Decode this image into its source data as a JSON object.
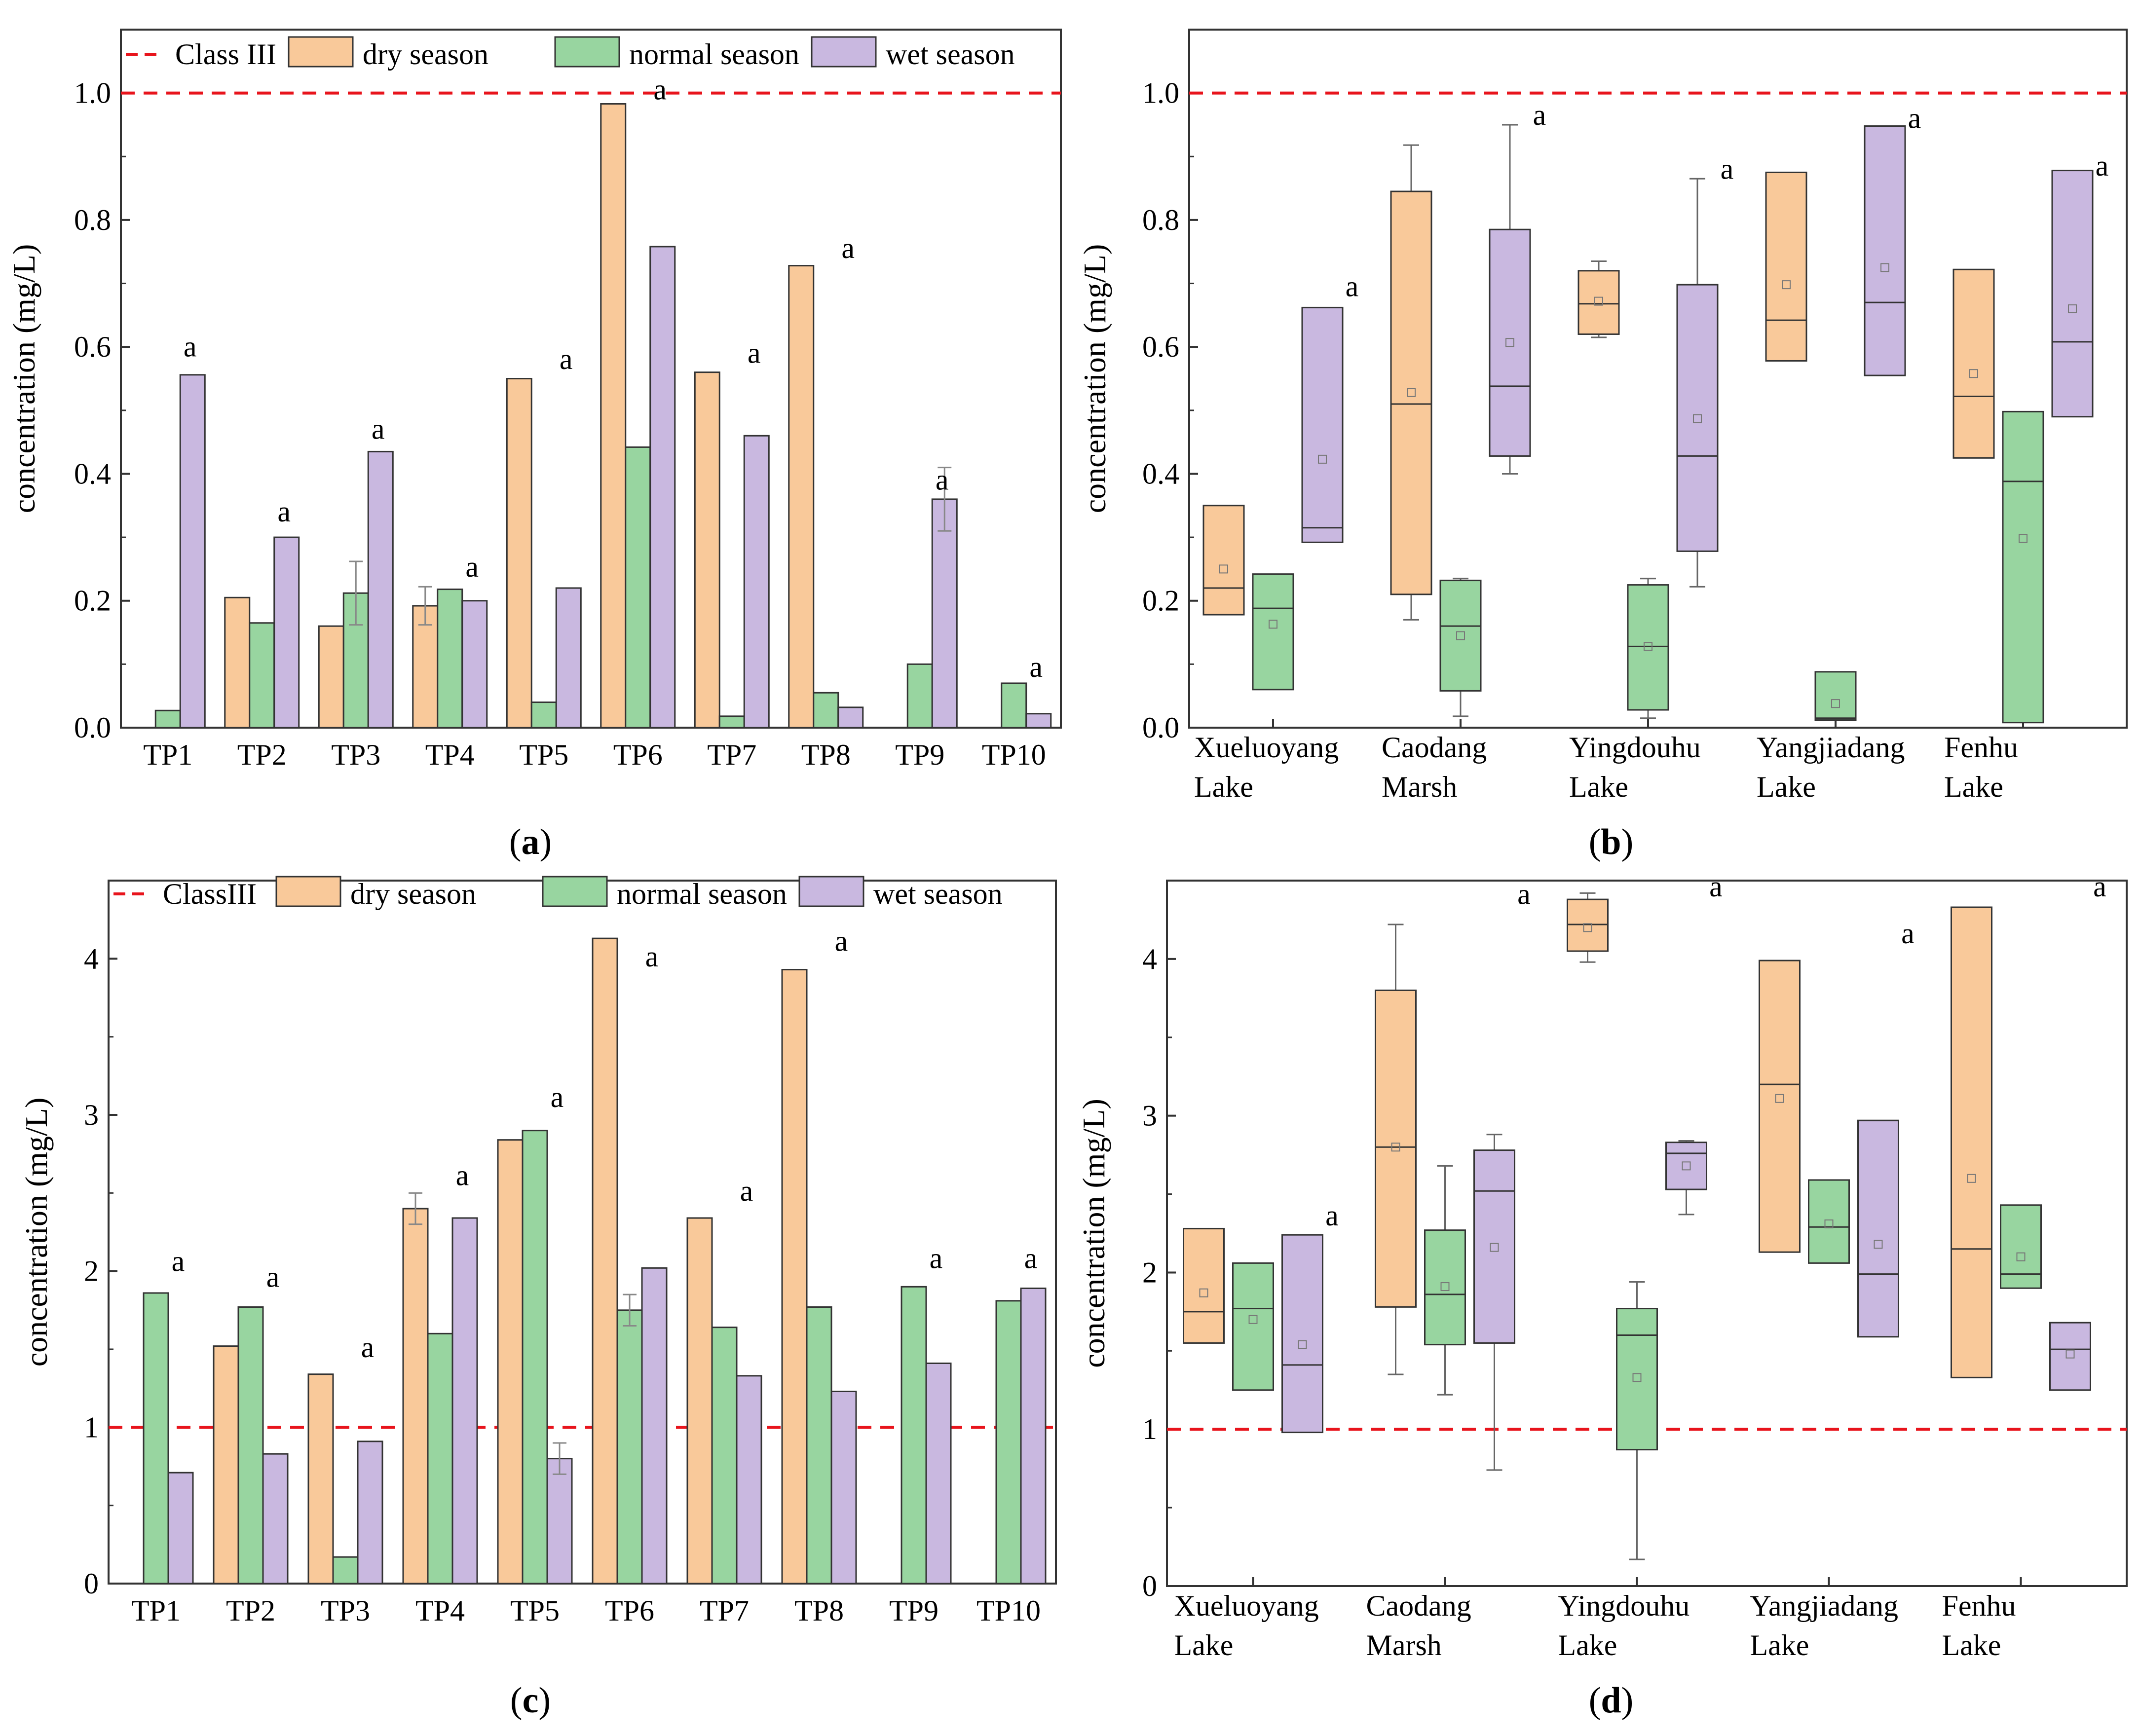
{
  "colors": {
    "dry": "#f9c99a",
    "normal": "#98d5a0",
    "wet": "#c9b8e0",
    "reference": "#e8141c",
    "stroke": "#333333"
  },
  "panels": [
    {
      "id": "a",
      "label": "a",
      "chart_data": {
        "type": "bar",
        "ylabel": "concentration (mg/L)",
        "ylim": [
          0,
          1.1
        ],
        "yticks": [
          "0.0",
          "0.2",
          "0.4",
          "0.6",
          "0.8",
          "1.0"
        ],
        "ytick_values": [
          0,
          0.2,
          0.4,
          0.6,
          0.8,
          1.0
        ],
        "categories": [
          "TP1",
          "TP2",
          "TP3",
          "TP4",
          "TP5",
          "TP6",
          "TP7",
          "TP8",
          "TP9",
          "TP10"
        ],
        "reference": {
          "name": "Class III",
          "value": 1.0
        },
        "legend": [
          "Class III",
          "dry season",
          "normal season",
          "wet season"
        ],
        "series": [
          {
            "name": "dry season",
            "values": [
              null,
              0.205,
              0.16,
              0.192,
              0.55,
              0.983,
              0.56,
              0.728,
              null,
              null
            ],
            "errors": [
              null,
              null,
              null,
              0.03,
              null,
              null,
              null,
              null,
              null,
              null
            ]
          },
          {
            "name": "normal season",
            "values": [
              0.027,
              0.165,
              0.212,
              0.218,
              0.04,
              0.442,
              0.018,
              0.055,
              0.1,
              0.07
            ],
            "errors": [
              null,
              null,
              0.05,
              null,
              null,
              null,
              null,
              null,
              null,
              null
            ]
          },
          {
            "name": "wet season",
            "values": [
              0.556,
              0.3,
              0.435,
              0.2,
              0.22,
              0.758,
              0.46,
              0.032,
              0.36,
              0.022
            ],
            "errors": [
              null,
              null,
              null,
              null,
              null,
              null,
              null,
              null,
              0.05,
              null
            ]
          }
        ],
        "annotations": [
          {
            "text": "a",
            "category": "TP1",
            "value": 0.585
          },
          {
            "text": "a",
            "category": "TP2",
            "value": 0.325
          },
          {
            "text": "a",
            "category": "TP3",
            "value": 0.455
          },
          {
            "text": "a",
            "category": "TP4",
            "value": 0.238
          },
          {
            "text": "a",
            "category": "TP5",
            "value": 0.565
          },
          {
            "text": "a",
            "category": "TP6",
            "value": 0.99
          },
          {
            "text": "a",
            "category": "TP7",
            "value": 0.575
          },
          {
            "text": "a",
            "category": "TP8",
            "value": 0.74
          },
          {
            "text": "a",
            "category": "TP9",
            "value": 0.375
          },
          {
            "text": "a",
            "category": "TP10",
            "value": 0.08
          }
        ]
      }
    },
    {
      "id": "b",
      "label": "b",
      "chart_data": {
        "type": "box",
        "ylabel": "concentration (mg/L)",
        "ylim": [
          0,
          1.1
        ],
        "yticks": [
          "0.0",
          "0.2",
          "0.4",
          "0.6",
          "0.8",
          "1.0"
        ],
        "ytick_values": [
          0,
          0.2,
          0.4,
          0.6,
          0.8,
          1.0
        ],
        "reference": {
          "name": "Class III",
          "value": 1.0
        },
        "groups": [
          {
            "name": [
              "Xueluoyang",
              "Lake"
            ],
            "annotation": {
              "text": "a",
              "value": 0.68
            }
          },
          {
            "name": [
              "Caodang",
              "Marsh"
            ],
            "annotation": {
              "text": "a",
              "value": 0.95
            }
          },
          {
            "name": [
              "Yingdouhu",
              "Lake"
            ],
            "annotation": {
              "text": "a",
              "value": 0.865
            }
          },
          {
            "name": [
              "Yangjiadang",
              "Lake"
            ],
            "annotation": {
              "text": "a",
              "value": 0.945
            }
          },
          {
            "name": [
              "Fenhu",
              "Lake"
            ],
            "annotation": {
              "text": "a",
              "value": 0.87
            }
          }
        ],
        "series": [
          {
            "name": "dry season",
            "boxes": [
              {
                "q1": 0.178,
                "median": 0.22,
                "q3": 0.35,
                "mean": 0.25,
                "wlo": null,
                "whi": null
              },
              {
                "q1": 0.21,
                "median": 0.51,
                "q3": 0.845,
                "mean": 0.528,
                "wlo": 0.17,
                "whi": 0.918
              },
              {
                "q1": 0.62,
                "median": 0.668,
                "q3": 0.72,
                "mean": 0.672,
                "wlo": 0.615,
                "whi": 0.735
              },
              {
                "q1": 0.578,
                "median": 0.642,
                "q3": 0.875,
                "mean": 0.698,
                "wlo": null,
                "whi": null
              },
              {
                "q1": 0.425,
                "median": 0.522,
                "q3": 0.722,
                "mean": 0.558,
                "wlo": null,
                "whi": null
              }
            ]
          },
          {
            "name": "normal season",
            "boxes": [
              {
                "q1": 0.06,
                "median": 0.188,
                "q3": 0.242,
                "mean": 0.163,
                "wlo": null,
                "whi": null
              },
              {
                "q1": 0.058,
                "median": 0.16,
                "q3": 0.232,
                "mean": 0.145,
                "wlo": 0.018,
                "whi": 0.235
              },
              {
                "q1": 0.028,
                "median": 0.128,
                "q3": 0.225,
                "mean": 0.128,
                "wlo": 0.015,
                "whi": 0.235
              },
              {
                "q1": 0.012,
                "median": 0.015,
                "q3": 0.088,
                "mean": 0.038,
                "wlo": null,
                "whi": null
              },
              {
                "q1": 0.008,
                "median": 0.388,
                "q3": 0.498,
                "mean": 0.298,
                "wlo": null,
                "whi": null
              }
            ]
          },
          {
            "name": "wet season",
            "boxes": [
              {
                "q1": 0.292,
                "median": 0.315,
                "q3": 0.662,
                "mean": 0.423,
                "wlo": null,
                "whi": null
              },
              {
                "q1": 0.428,
                "median": 0.538,
                "q3": 0.785,
                "mean": 0.607,
                "wlo": 0.4,
                "whi": 0.95
              },
              {
                "q1": 0.278,
                "median": 0.428,
                "q3": 0.698,
                "mean": 0.487,
                "wlo": 0.222,
                "whi": 0.865
              },
              {
                "q1": 0.555,
                "median": 0.67,
                "q3": 0.948,
                "mean": 0.725,
                "wlo": null,
                "whi": null
              },
              {
                "q1": 0.49,
                "median": 0.608,
                "q3": 0.878,
                "mean": 0.66,
                "wlo": null,
                "whi": null
              }
            ]
          }
        ]
      }
    },
    {
      "id": "c",
      "label": "c",
      "chart_data": {
        "type": "bar",
        "ylabel": "concentration (mg/L)",
        "ylim": [
          0,
          4.5
        ],
        "yticks": [
          "0",
          "1",
          "2",
          "3",
          "4"
        ],
        "ytick_values": [
          0,
          1,
          2,
          3,
          4
        ],
        "categories": [
          "TP1",
          "TP2",
          "TP3",
          "TP4",
          "TP5",
          "TP6",
          "TP7",
          "TP8",
          "TP9",
          "TP10"
        ],
        "reference": {
          "name": "ClassIII",
          "value": 1.0
        },
        "legend": [
          "ClassIII",
          "dry season",
          "normal season",
          "wet season"
        ],
        "series": [
          {
            "name": "dry season",
            "values": [
              null,
              1.52,
              1.34,
              2.4,
              2.84,
              4.13,
              2.34,
              3.93,
              null,
              null
            ],
            "errors": [
              null,
              null,
              null,
              0.1,
              null,
              null,
              null,
              null,
              null,
              null
            ]
          },
          {
            "name": "normal season",
            "values": [
              1.86,
              1.77,
              0.17,
              1.6,
              2.9,
              1.75,
              1.64,
              1.77,
              1.9,
              1.81
            ],
            "errors": [
              null,
              null,
              null,
              null,
              null,
              0.1,
              null,
              null,
              null,
              null
            ]
          },
          {
            "name": "wet season",
            "values": [
              0.71,
              0.83,
              0.91,
              2.34,
              0.8,
              2.02,
              1.33,
              1.23,
              1.41,
              1.89
            ],
            "errors": [
              null,
              null,
              null,
              null,
              0.1,
              null,
              null,
              null,
              null,
              null
            ]
          }
        ],
        "annotations": [
          {
            "text": "a",
            "category": "TP1",
            "value": 2.0
          },
          {
            "text": "a",
            "category": "TP2",
            "value": 1.9
          },
          {
            "text": "a",
            "category": "TP3",
            "value": 1.45
          },
          {
            "text": "a",
            "category": "TP4",
            "value": 2.55
          },
          {
            "text": "a",
            "category": "TP5",
            "value": 3.05
          },
          {
            "text": "a",
            "category": "TP6",
            "value": 3.95
          },
          {
            "text": "a",
            "category": "TP7",
            "value": 2.45
          },
          {
            "text": "a",
            "category": "TP8",
            "value": 4.05
          },
          {
            "text": "a",
            "category": "TP9",
            "value": 2.02
          },
          {
            "text": "a",
            "category": "TP10",
            "value": 2.02
          }
        ]
      }
    },
    {
      "id": "d",
      "label": "d",
      "chart_data": {
        "type": "box",
        "ylabel": "concentration (mg/L)",
        "ylim": [
          0,
          4.5
        ],
        "yticks": [
          "0",
          "1",
          "2",
          "3",
          "4"
        ],
        "ytick_values": [
          0,
          1,
          2,
          3,
          4
        ],
        "reference": {
          "name": "ClassIII",
          "value": 1.0
        },
        "groups": [
          {
            "name": [
              "Xueluoyang",
              "Lake"
            ],
            "annotation": {
              "text": "a",
              "value": 2.3
            }
          },
          {
            "name": [
              "Caodang",
              "Marsh"
            ],
            "annotation": {
              "text": "a",
              "value": 4.35
            }
          },
          {
            "name": [
              "Yingdouhu",
              "Lake"
            ],
            "annotation": {
              "text": "a",
              "value": 4.4
            }
          },
          {
            "name": [
              "Yangjiadang",
              "Lake"
            ],
            "annotation": {
              "text": "a",
              "value": 4.1
            }
          },
          {
            "name": [
              "Fenhu",
              "Lake"
            ],
            "annotation": {
              "text": "a",
              "value": 4.4
            }
          }
        ],
        "series": [
          {
            "name": "dry season",
            "boxes": [
              {
                "q1": 1.55,
                "median": 1.75,
                "q3": 2.28,
                "mean": 1.87,
                "wlo": null,
                "whi": null
              },
              {
                "q1": 1.78,
                "median": 2.8,
                "q3": 3.8,
                "mean": 2.8,
                "wlo": 1.35,
                "whi": 4.22
              },
              {
                "q1": 4.05,
                "median": 4.22,
                "q3": 4.38,
                "mean": 4.2,
                "wlo": 3.98,
                "whi": 4.42
              },
              {
                "q1": 2.13,
                "median": 3.2,
                "q3": 3.99,
                "mean": 3.11,
                "wlo": null,
                "whi": null
              },
              {
                "q1": 1.33,
                "median": 2.15,
                "q3": 4.33,
                "mean": 2.6,
                "wlo": null,
                "whi": null
              }
            ]
          },
          {
            "name": "normal season",
            "boxes": [
              {
                "q1": 1.25,
                "median": 1.77,
                "q3": 2.06,
                "mean": 1.7,
                "wlo": null,
                "whi": null
              },
              {
                "q1": 1.54,
                "median": 1.86,
                "q3": 2.27,
                "mean": 1.91,
                "wlo": 1.22,
                "whi": 2.68
              },
              {
                "q1": 0.87,
                "median": 1.6,
                "q3": 1.77,
                "mean": 1.33,
                "wlo": 0.17,
                "whi": 1.94
              },
              {
                "q1": 2.06,
                "median": 2.29,
                "q3": 2.59,
                "mean": 2.31,
                "wlo": null,
                "whi": null
              },
              {
                "q1": 1.9,
                "median": 1.99,
                "q3": 2.43,
                "mean": 2.1,
                "wlo": null,
                "whi": null
              }
            ]
          },
          {
            "name": "wet season",
            "boxes": [
              {
                "q1": 0.98,
                "median": 1.41,
                "q3": 2.24,
                "mean": 1.54,
                "wlo": null,
                "whi": null
              },
              {
                "q1": 1.55,
                "median": 2.52,
                "q3": 2.78,
                "mean": 2.16,
                "wlo": 0.74,
                "whi": 2.88
              },
              {
                "q1": 2.53,
                "median": 2.76,
                "q3": 2.83,
                "mean": 2.68,
                "wlo": 2.37,
                "whi": 2.84
              },
              {
                "q1": 1.59,
                "median": 1.99,
                "q3": 2.97,
                "mean": 2.18,
                "wlo": null,
                "whi": null
              },
              {
                "q1": 1.25,
                "median": 1.51,
                "q3": 1.68,
                "mean": 1.48,
                "wlo": null,
                "whi": null
              }
            ]
          }
        ]
      }
    }
  ]
}
